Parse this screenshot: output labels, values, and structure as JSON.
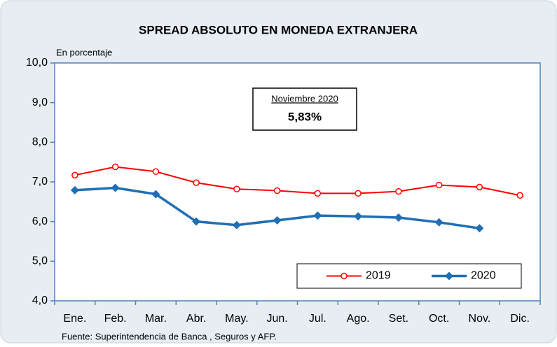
{
  "chart_data": {
    "type": "line",
    "title": "SPREAD ABSOLUTO EN MONEDA EXTRANJERA",
    "y_label": "En porcentaje",
    "source": "Fuente: Superintendencia de Banca , Seguros y AFP.",
    "annotation": {
      "title": "Noviembre 2020",
      "text": "5,83%"
    },
    "categories": [
      "Ene.",
      "Feb.",
      "Mar.",
      "Abr.",
      "May.",
      "Jun.",
      "Jul.",
      "Ago.",
      "Set.",
      "Oct.",
      "Nov.",
      "Dic."
    ],
    "series": [
      {
        "name": "2019",
        "color": "#ff0000",
        "marker": "circle",
        "values": [
          7.17,
          7.38,
          7.26,
          6.98,
          6.82,
          6.78,
          6.71,
          6.71,
          6.76,
          6.92,
          6.87,
          6.66
        ]
      },
      {
        "name": "2020",
        "color": "#1f6fb5",
        "marker": "diamond",
        "values": [
          6.79,
          6.85,
          6.69,
          6.0,
          5.91,
          6.03,
          6.15,
          6.13,
          6.1,
          5.98,
          5.83,
          null
        ]
      }
    ],
    "ylim": [
      4,
      10
    ],
    "yticks": [
      {
        "value": 4,
        "label": "4,0"
      },
      {
        "value": 5,
        "label": "5,0"
      },
      {
        "value": 6,
        "label": "6,0"
      },
      {
        "value": 7,
        "label": "7,0"
      },
      {
        "value": 8,
        "label": "8,0"
      },
      {
        "value": 9,
        "label": "9,0"
      },
      {
        "value": 10,
        "label": "10,0"
      }
    ],
    "legend": "bottom-right"
  }
}
